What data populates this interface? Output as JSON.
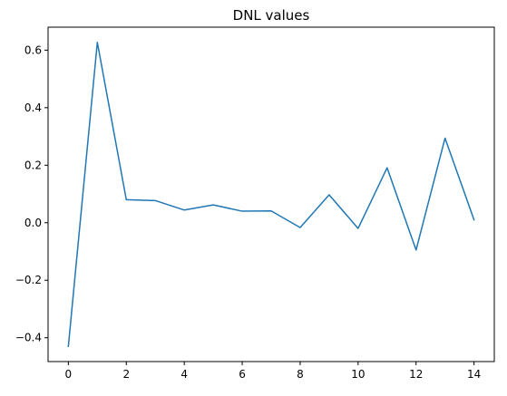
{
  "chart_data": {
    "type": "line",
    "title": "DNL values",
    "xlabel": "",
    "ylabel": "",
    "x": [
      0,
      1,
      2,
      3,
      4,
      5,
      6,
      7,
      8,
      9,
      10,
      11,
      12,
      13,
      14
    ],
    "series": [
      {
        "values": [
          -0.43,
          0.627,
          0.08,
          0.077,
          0.044,
          0.062,
          0.04,
          0.041,
          -0.017,
          0.097,
          -0.02,
          0.191,
          -0.095,
          0.294,
          0.01
        ],
        "color": "#1f77b4"
      }
    ],
    "xlim": [
      -0.7,
      14.7
    ],
    "ylim": [
      -0.4829,
      0.6799
    ],
    "xticks": [
      0,
      2,
      4,
      6,
      8,
      10,
      12,
      14
    ],
    "yticks": [
      -0.4,
      -0.2,
      0.0,
      0.2,
      0.4,
      0.6
    ],
    "xtick_labels": [
      "0",
      "2",
      "4",
      "6",
      "8",
      "10",
      "12",
      "14"
    ],
    "ytick_labels": [
      "−0.4",
      "−0.2",
      "0.0",
      "0.2",
      "0.4",
      "0.6"
    ],
    "grid": false,
    "legend": "none"
  }
}
